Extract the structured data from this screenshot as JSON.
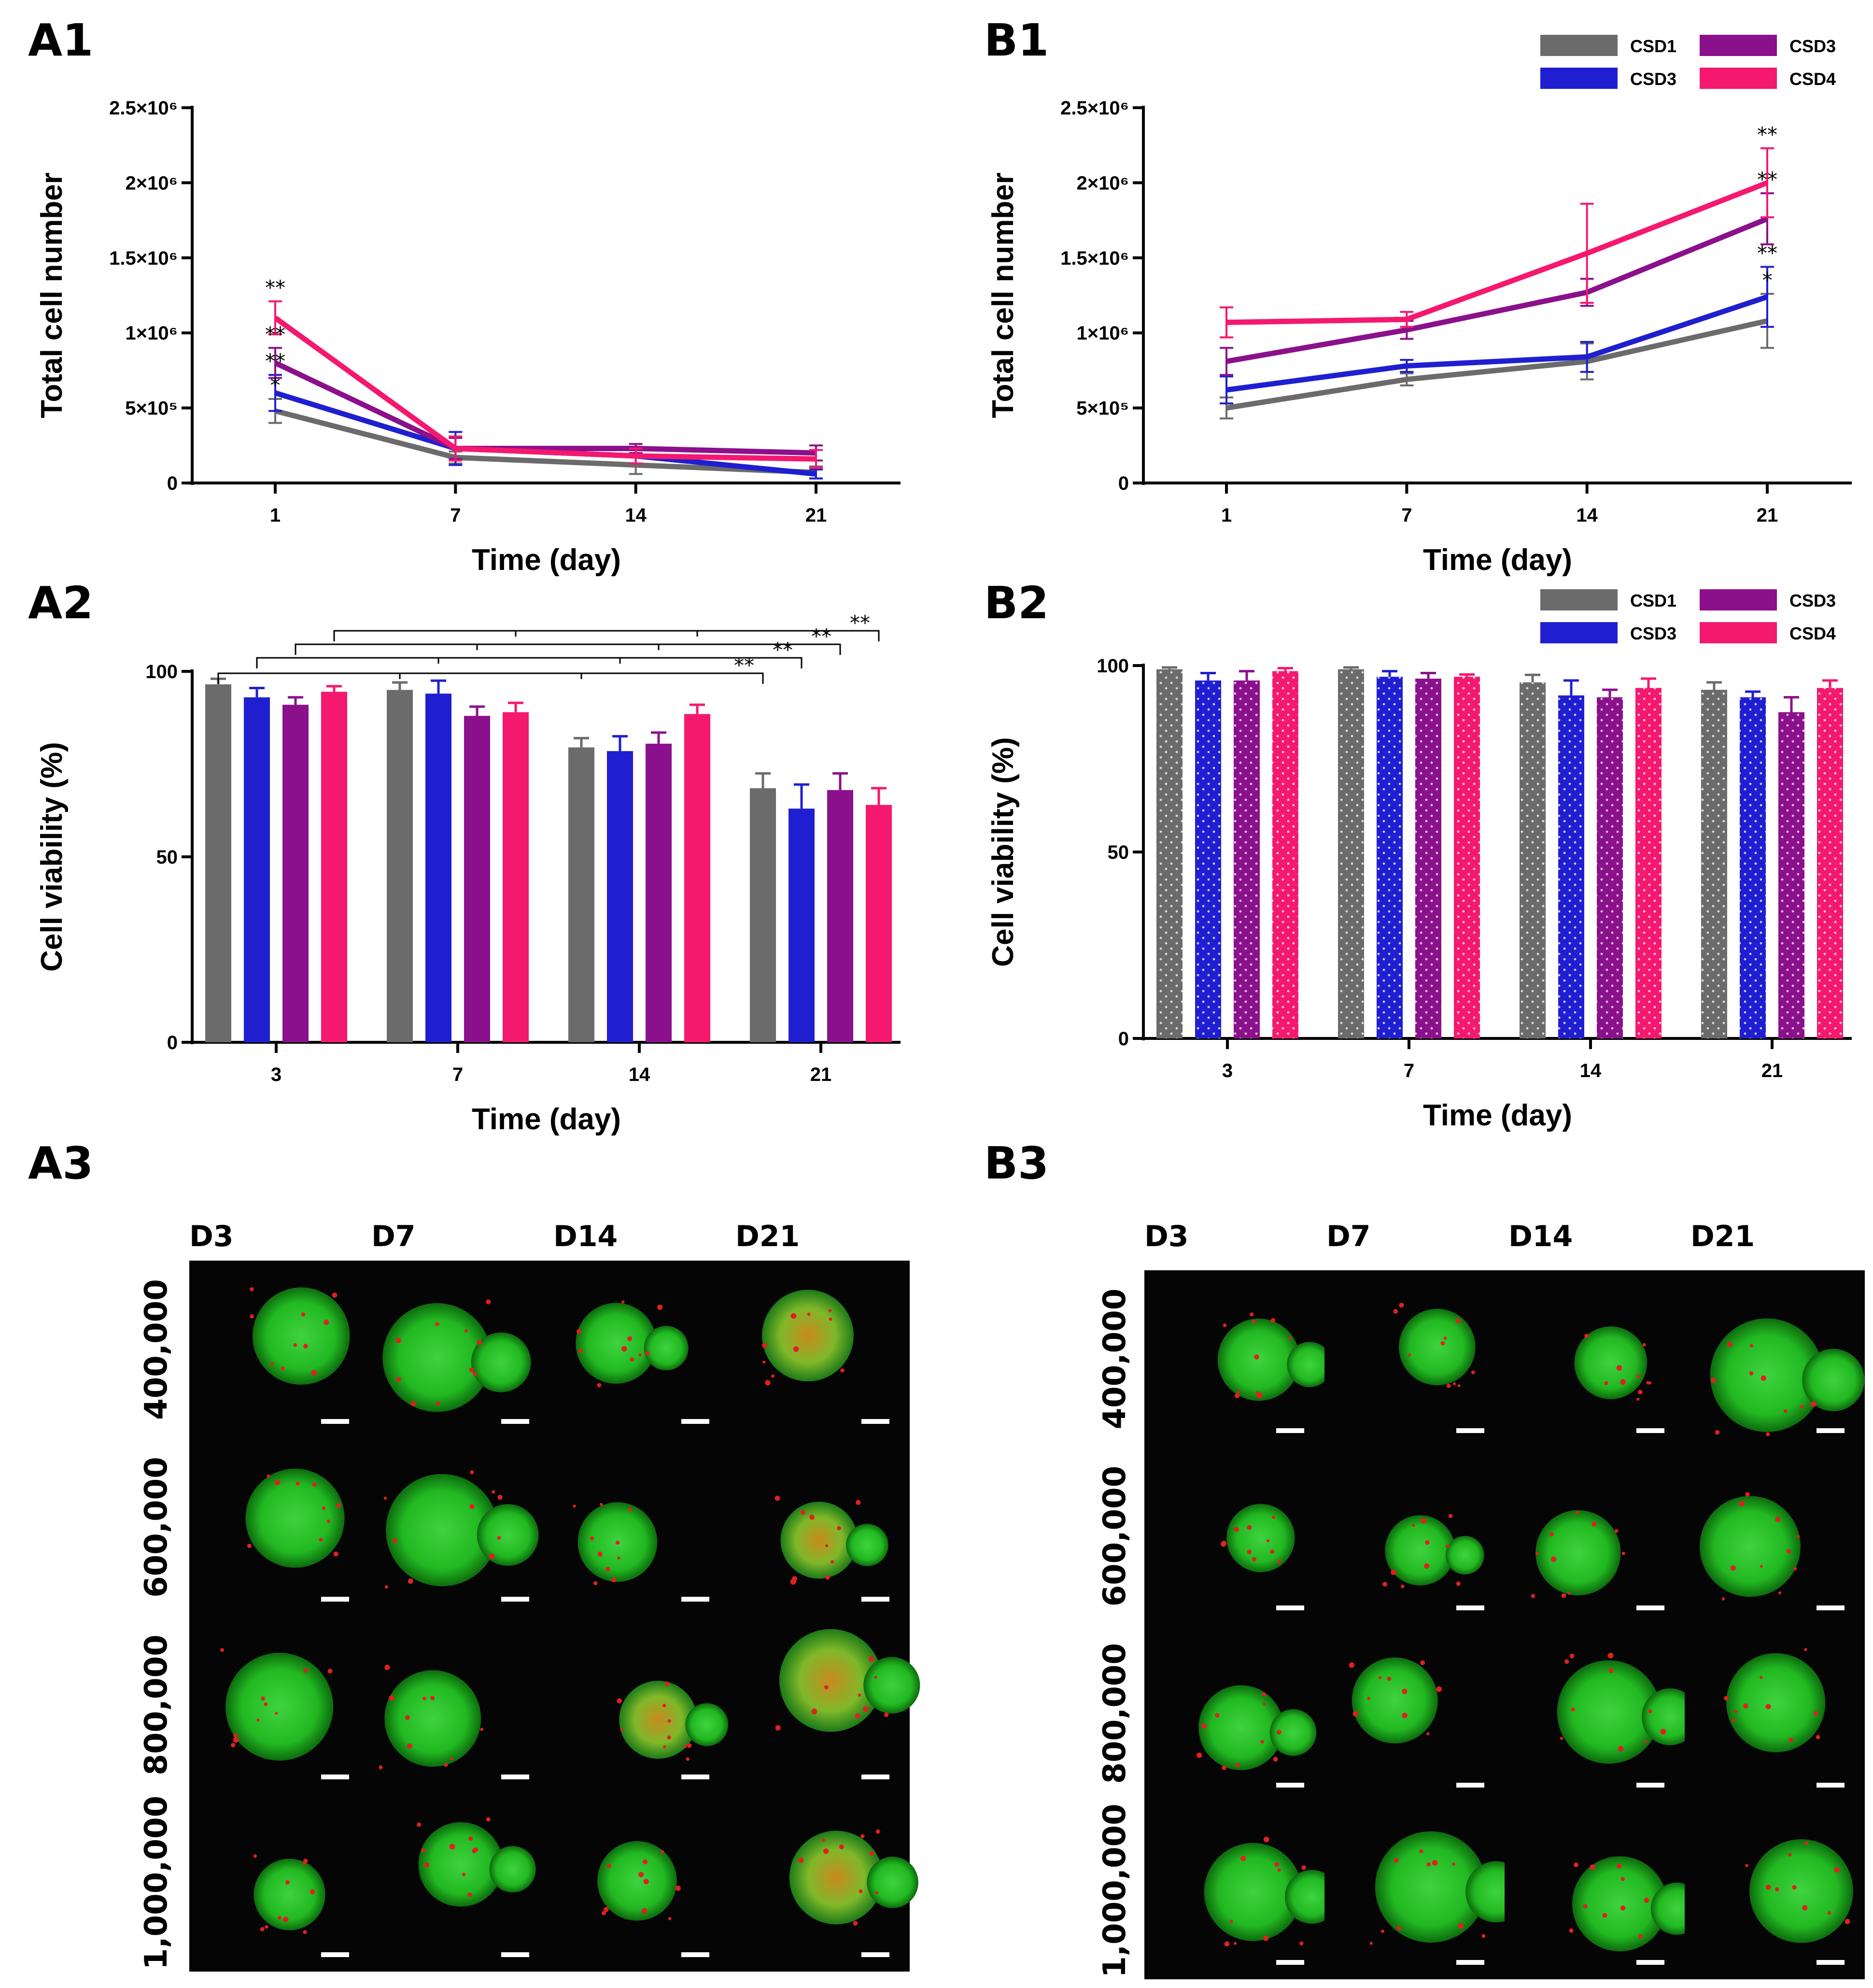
{
  "colors": {
    "CSD1": "#6b6b6b",
    "CSD3_blue": "#1f1fd1",
    "CSD3_purple": "#8b108b",
    "CSD4": "#f4196e"
  },
  "chart_data": [
    {
      "panel": "A1",
      "type": "line",
      "x": [
        "1",
        "7",
        "14",
        "21"
      ],
      "xlabel": "Time (day)",
      "ylabel": "Total cell number",
      "ylim": [
        0,
        2500000
      ],
      "y_ticks": [
        "0",
        "5×10⁵",
        "1×10⁶",
        "1.5×10⁶",
        "2×10⁶",
        "2.5×10⁶"
      ],
      "series": [
        {
          "name": "CSD1",
          "color": "#6b6b6b",
          "values": [
            480000,
            170000,
            120000,
            70000
          ],
          "errors": [
            80000,
            40000,
            60000,
            40000
          ]
        },
        {
          "name": "CSD3",
          "color": "#1f1fd1",
          "values": [
            600000,
            230000,
            180000,
            60000
          ],
          "errors": [
            120000,
            110000,
            50000,
            30000
          ]
        },
        {
          "name": "CSD3",
          "color": "#8b108b",
          "values": [
            800000,
            230000,
            230000,
            200000
          ],
          "errors": [
            100000,
            70000,
            30000,
            50000
          ]
        },
        {
          "name": "CSD4",
          "color": "#f4196e",
          "values": [
            1100000,
            230000,
            180000,
            160000
          ],
          "errors": [
            110000,
            80000,
            50000,
            60000
          ]
        }
      ],
      "annotations": [
        "**",
        "**",
        "**",
        "*"
      ],
      "grid": false
    },
    {
      "panel": "B1",
      "type": "line",
      "x": [
        "1",
        "7",
        "14",
        "21"
      ],
      "xlabel": "Time (day)",
      "ylabel": "Total cell number",
      "ylim": [
        0,
        2500000
      ],
      "y_ticks": [
        "0",
        "5×10⁵",
        "1×10⁶",
        "1.5×10⁶",
        "2×10⁶",
        "2.5×10⁶"
      ],
      "series": [
        {
          "name": "CSD1",
          "color": "#6b6b6b",
          "values": [
            500000,
            690000,
            810000,
            1080000
          ],
          "errors": [
            70000,
            40000,
            120000,
            180000
          ]
        },
        {
          "name": "CSD3",
          "color": "#1f1fd1",
          "values": [
            620000,
            780000,
            840000,
            1240000
          ],
          "errors": [
            90000,
            40000,
            100000,
            200000
          ]
        },
        {
          "name": "CSD3",
          "color": "#8b108b",
          "values": [
            810000,
            1020000,
            1270000,
            1760000
          ],
          "errors": [
            90000,
            60000,
            90000,
            170000
          ]
        },
        {
          "name": "CSD4",
          "color": "#f4196e",
          "values": [
            1070000,
            1090000,
            1530000,
            2000000
          ],
          "errors": [
            100000,
            50000,
            330000,
            230000
          ]
        }
      ],
      "annotations": [
        "**",
        "**",
        "**",
        "*"
      ],
      "legend": {
        "position": "top-right",
        "entries": [
          "CSD1",
          "CSD3",
          "CSD3",
          "CSD4"
        ]
      },
      "grid": false
    },
    {
      "panel": "A2",
      "type": "bar",
      "categories": [
        "3",
        "7",
        "14",
        "21"
      ],
      "xlabel": "Time (day)",
      "ylabel": "Cell viability (%)",
      "ylim": [
        0,
        100
      ],
      "y_ticks": [
        "0",
        "50",
        "100"
      ],
      "series": [
        {
          "name": "CSD1",
          "color": "#6b6b6b",
          "values": [
            96.5,
            95,
            79.5,
            68.5
          ],
          "errors": [
            1.5,
            2,
            2.5,
            4
          ]
        },
        {
          "name": "CSD3",
          "color": "#1f1fd1",
          "values": [
            93,
            94,
            78.5,
            63
          ],
          "errors": [
            2.5,
            3.5,
            4,
            6.5
          ]
        },
        {
          "name": "CSD3",
          "color": "#8b108b",
          "values": [
            91,
            88,
            80.5,
            68
          ],
          "errors": [
            2,
            2.5,
            3,
            4.5
          ]
        },
        {
          "name": "CSD4",
          "color": "#f4196e",
          "values": [
            94.5,
            89,
            88.5,
            64
          ],
          "errors": [
            1.5,
            2.5,
            2.5,
            4.5
          ]
        }
      ],
      "significance_labels": [
        "**",
        "**",
        "**",
        "**"
      ],
      "grid": false
    },
    {
      "panel": "B2",
      "type": "bar",
      "categories": [
        "3",
        "7",
        "14",
        "21"
      ],
      "xlabel": "Time (day)",
      "ylabel": "Cell viability (%)",
      "ylim": [
        0,
        100
      ],
      "y_ticks": [
        "0",
        "50",
        "100"
      ],
      "series": [
        {
          "name": "CSD1",
          "color": "#6b6b6b",
          "values": [
            99,
            99,
            95.5,
            93.5
          ],
          "errors": [
            0.5,
            0.5,
            2,
            2
          ]
        },
        {
          "name": "CSD3",
          "color": "#1f1fd1",
          "values": [
            96,
            97,
            92,
            91.5
          ],
          "errors": [
            2,
            1.5,
            4,
            1.5
          ]
        },
        {
          "name": "CSD3",
          "color": "#8b108b",
          "values": [
            96,
            96.5,
            91.5,
            87.5
          ],
          "errors": [
            2.5,
            1.5,
            2,
            4
          ]
        },
        {
          "name": "CSD4",
          "color": "#f4196e",
          "values": [
            98.5,
            97,
            94,
            94
          ],
          "errors": [
            0.8,
            0.6,
            2.5,
            2
          ]
        }
      ],
      "legend": {
        "position": "top-right",
        "entries": [
          "CSD1",
          "CSD3",
          "CSD3",
          "CSD4"
        ]
      },
      "grid": false
    }
  ],
  "panel_labels": {
    "A1": "A1",
    "B1": "B1",
    "A2": "A2",
    "B2": "B2",
    "A3": "A3",
    "B3": "B3"
  },
  "image_grids": {
    "day_labels": [
      "D3",
      "D7",
      "D14",
      "D21"
    ],
    "row_labels": [
      "400,000",
      "600,000",
      "800,000",
      "1,000,000"
    ]
  }
}
